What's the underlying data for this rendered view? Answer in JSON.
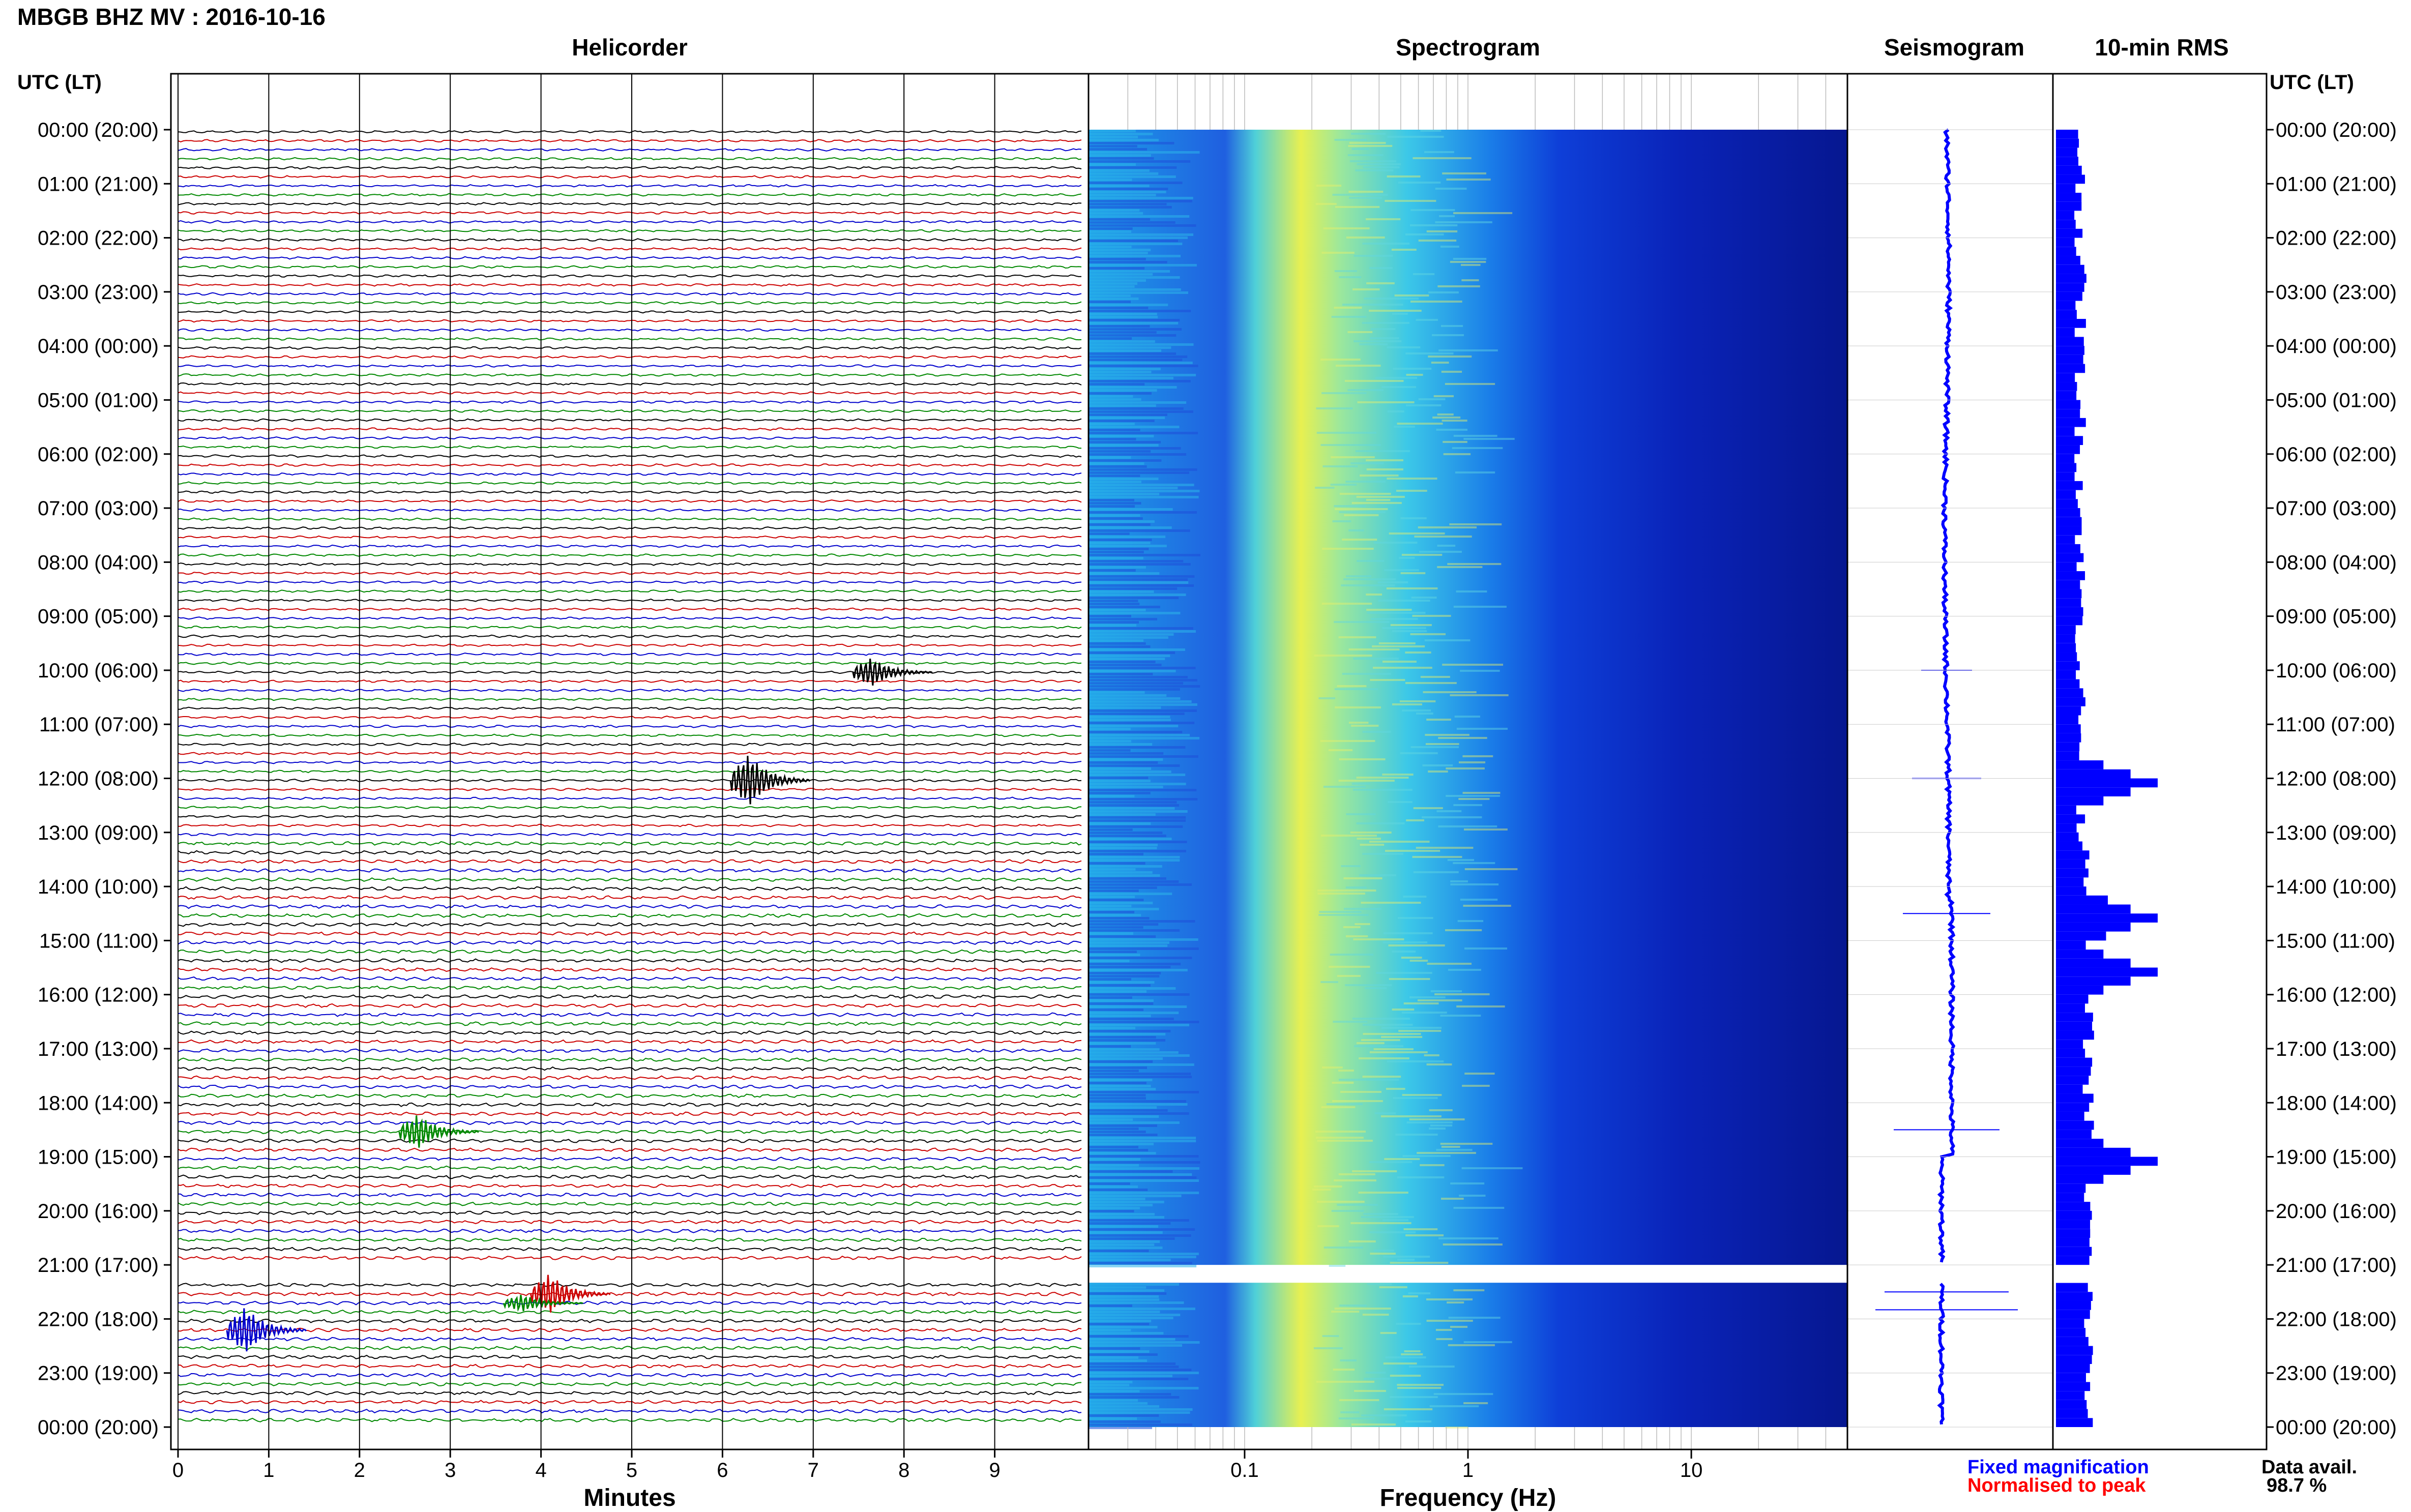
{
  "header": {
    "title": "MBGB BHZ MV : 2016-10-16"
  },
  "panels": {
    "helicorder": "Helicorder",
    "spectrogram": "Spectrogram",
    "seismogram": "Seismogram",
    "rms": "10-min RMS"
  },
  "axes": {
    "time_header_left": "UTC (LT)",
    "time_header_right": "UTC (LT)",
    "minutes_label": "Minutes",
    "frequency_label": "Frequency (Hz)"
  },
  "legend": {
    "fixed": "Fixed magnification",
    "normalised": "Normalised to peak"
  },
  "availability": {
    "label": "Data avail.",
    "value": "98.7 %"
  },
  "chart_data": [
    {
      "type": "line",
      "name": "helicorder",
      "title": "Helicorder",
      "xlabel": "Minutes",
      "x_ticks": [
        "0",
        "1",
        "2",
        "3",
        "4",
        "5",
        "6",
        "7",
        "8",
        "9"
      ],
      "xlim": [
        0,
        10
      ],
      "time_ticks": [
        "00:00 (20:00)",
        "01:00 (21:00)",
        "02:00 (22:00)",
        "03:00 (23:00)",
        "04:00 (00:00)",
        "05:00 (01:00)",
        "06:00 (02:00)",
        "07:00 (03:00)",
        "08:00 (04:00)",
        "09:00 (05:00)",
        "10:00 (06:00)",
        "11:00 (07:00)",
        "12:00 (08:00)",
        "13:00 (09:00)",
        "14:00 (10:00)",
        "15:00 (11:00)",
        "16:00 (12:00)",
        "17:00 (13:00)",
        "18:00 (14:00)",
        "19:00 (15:00)",
        "20:00 (16:00)",
        "21:00 (17:00)",
        "22:00 (18:00)",
        "23:00 (19:00)",
        "00:00 (20:00)"
      ],
      "lines_per_hour": 6,
      "line_colors": [
        "#000000",
        "#cc0000",
        "#0000cc",
        "#008800"
      ],
      "gap": [
        {
          "from_hours": 21.0,
          "to_hours": 21.33
        }
      ],
      "events": [
        {
          "hour": 10.0,
          "minute": 7.55,
          "color": "#000000",
          "amplitude": 0.5
        },
        {
          "hour": 12.0,
          "minute": 6.2,
          "color": "#000000",
          "amplitude": 0.9
        },
        {
          "hour": 18.5,
          "minute": 2.55,
          "color": "#008800",
          "amplitude": 0.6
        },
        {
          "hour": 21.5,
          "minute": 4.0,
          "color": "#cc0000",
          "amplitude": 0.7
        },
        {
          "hour": 21.67,
          "minute": 3.7,
          "color": "#008800",
          "amplitude": 0.3
        },
        {
          "hour": 22.17,
          "minute": 0.65,
          "color": "#0000cc",
          "amplitude": 0.8
        }
      ],
      "grid": true
    },
    {
      "type": "heatmap",
      "name": "spectrogram",
      "title": "Spectrogram",
      "xlabel": "Frequency (Hz)",
      "x_scale": "log",
      "xlim": [
        0.02,
        50
      ],
      "x_ticks": [
        "0.1",
        "1",
        "10"
      ],
      "dominant_band_hz": [
        0.15,
        0.3
      ],
      "gap": [
        {
          "from_hours": 21.0,
          "to_hours": 21.33
        }
      ]
    },
    {
      "type": "line",
      "name": "seismogram",
      "title": "Seismogram",
      "spikes_hours": [
        10.0,
        12.0,
        14.5,
        18.5,
        21.5,
        21.83
      ]
    },
    {
      "type": "bar",
      "name": "rms",
      "title": "10-min RMS",
      "peaks_hours": [
        12.0,
        14.5,
        15.5,
        19.0
      ],
      "max_relative": 1.0
    }
  ],
  "colors": {
    "fixed": "#0000ff",
    "normalised": "#ff0000",
    "rms_bar": "#0000ff",
    "seismo_line": "#0000ff"
  }
}
